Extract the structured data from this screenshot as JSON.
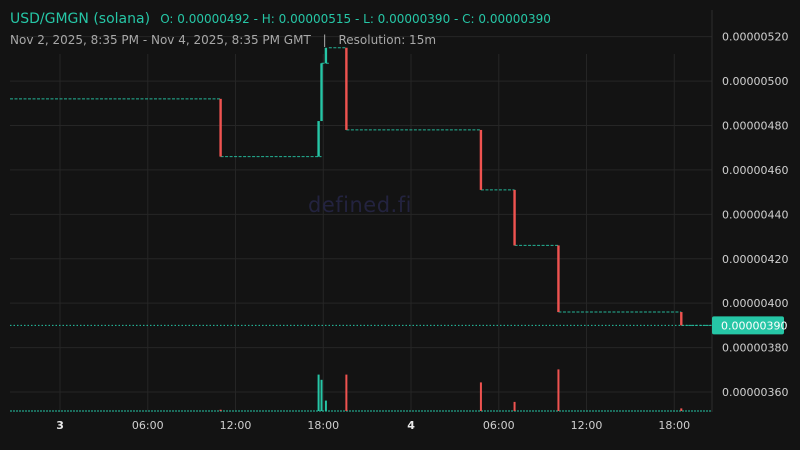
{
  "header": {
    "pair": "USD/GMGN (solana)",
    "ohlc": "O: 0.00000492 - H: 0.00000515 - L: 0.00000390 - C: 0.00000390",
    "range": "Nov 2, 2025, 8:35 PM - Nov 4, 2025, 8:35 PM GMT",
    "separator": "|",
    "resolution": "Resolution: 15m"
  },
  "watermark": "defined.fi",
  "colors": {
    "up": "#26c6a6",
    "down": "#ef5350",
    "grid": "#262626",
    "price_tag_bg": "#26c6a6"
  },
  "chart_data": {
    "type": "candlestick",
    "x_ticks": [
      {
        "label": "3",
        "t": 3.42
      },
      {
        "label": "06:00",
        "t": 9.42
      },
      {
        "label": "12:00",
        "t": 15.42
      },
      {
        "label": "18:00",
        "t": 21.42
      },
      {
        "label": "4",
        "t": 27.42
      },
      {
        "label": "06:00",
        "t": 33.42
      },
      {
        "label": "12:00",
        "t": 39.42
      },
      {
        "label": "18:00",
        "t": 45.42
      }
    ],
    "x_range_hours": [
      0,
      48
    ],
    "y_range": [
      3.51e-06,
      5.32e-06
    ],
    "y_ticks": [
      "0.00000520",
      "0.00000500",
      "0.00000480",
      "0.00000460",
      "0.00000440",
      "0.00000420",
      "0.00000400",
      "0.00000380",
      "0.00000360"
    ],
    "last_price": {
      "label": "0.00000390",
      "value": 3.9e-06
    },
    "price_segments": [
      {
        "t0": 0.0,
        "t1": 14.4,
        "price": 4.92e-06
      },
      {
        "t0": 14.4,
        "t1": 21.3,
        "price": 4.66e-06
      },
      {
        "t0": 21.3,
        "t1": 21.8,
        "price": 5.08e-06
      },
      {
        "t0": 21.8,
        "t1": 23.0,
        "price": 5.15e-06
      },
      {
        "t0": 23.0,
        "t1": 32.2,
        "price": 4.78e-06
      },
      {
        "t0": 32.2,
        "t1": 34.5,
        "price": 4.51e-06
      },
      {
        "t0": 34.5,
        "t1": 37.5,
        "price": 4.26e-06
      },
      {
        "t0": 37.5,
        "t1": 45.9,
        "price": 3.96e-06
      },
      {
        "t0": 45.9,
        "t1": 48.0,
        "price": 3.9e-06
      }
    ],
    "candles": [
      {
        "t": 14.4,
        "open": 4.92e-06,
        "close": 4.66e-06,
        "direction": "down"
      },
      {
        "t": 21.1,
        "open": 4.66e-06,
        "close": 4.82e-06,
        "direction": "up"
      },
      {
        "t": 21.3,
        "open": 4.82e-06,
        "close": 5.08e-06,
        "direction": "up"
      },
      {
        "t": 21.6,
        "open": 5.08e-06,
        "close": 5.15e-06,
        "direction": "up"
      },
      {
        "t": 23.0,
        "open": 5.15e-06,
        "close": 4.78e-06,
        "direction": "down"
      },
      {
        "t": 32.2,
        "open": 4.78e-06,
        "close": 4.51e-06,
        "direction": "down"
      },
      {
        "t": 34.5,
        "open": 4.51e-06,
        "close": 4.26e-06,
        "direction": "down"
      },
      {
        "t": 37.5,
        "open": 4.26e-06,
        "close": 3.96e-06,
        "direction": "down"
      },
      {
        "t": 45.9,
        "open": 3.96e-06,
        "close": 3.9e-06,
        "direction": "down"
      }
    ],
    "volume": [
      {
        "t": 14.4,
        "value": 0.5,
        "direction": "down"
      },
      {
        "t": 21.1,
        "value": 14,
        "direction": "up"
      },
      {
        "t": 21.3,
        "value": 12,
        "direction": "up"
      },
      {
        "t": 21.6,
        "value": 4,
        "direction": "up"
      },
      {
        "t": 23.0,
        "value": 14,
        "direction": "down"
      },
      {
        "t": 32.2,
        "value": 11,
        "direction": "down"
      },
      {
        "t": 34.5,
        "value": 3.5,
        "direction": "down"
      },
      {
        "t": 37.5,
        "value": 16,
        "direction": "down"
      },
      {
        "t": 45.9,
        "value": 1,
        "direction": "down"
      }
    ],
    "volume_max": 20,
    "grid": true
  }
}
